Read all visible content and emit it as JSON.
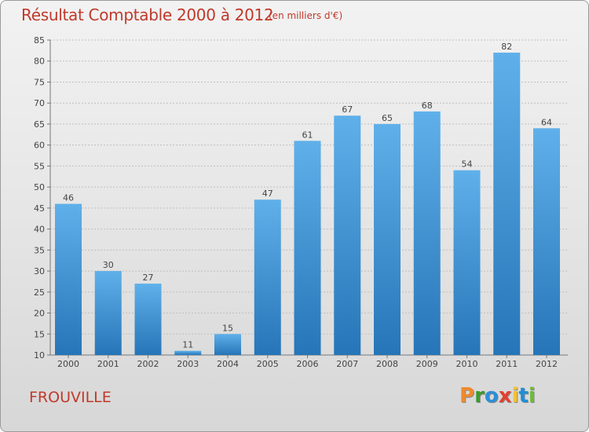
{
  "title": "Résultat Comptable 2000 à 2012",
  "subtitle": "(en milliers d'€)",
  "town": "FROUVILLE",
  "logo": {
    "letters": [
      "P",
      "r",
      "o",
      "x",
      "i",
      "t",
      "i"
    ],
    "colors": [
      "#ef8a2d",
      "#3c9a2c",
      "#2d8fd8",
      "#e2412d",
      "#f2c230",
      "#1f8fd6",
      "#6dbb3c"
    ]
  },
  "colors": {
    "accent": "#c0392b",
    "bar_top": "#5fb0ea",
    "bar_bottom": "#2675b8",
    "grid": "#bfbfbf"
  },
  "chart_data": {
    "type": "bar",
    "title": "Résultat Comptable 2000 à 2012",
    "subtitle": "(en milliers d'€)",
    "categories": [
      "2000",
      "2001",
      "2002",
      "2003",
      "2004",
      "2005",
      "2006",
      "2007",
      "2008",
      "2009",
      "2010",
      "2011",
      "2012"
    ],
    "values": [
      46,
      30,
      27,
      11,
      15,
      47,
      61,
      67,
      65,
      68,
      54,
      82,
      64
    ],
    "xlabel": "",
    "ylabel": "",
    "ylim": [
      10,
      85
    ],
    "yticks": [
      10,
      15,
      20,
      25,
      30,
      35,
      40,
      45,
      50,
      55,
      60,
      65,
      70,
      75,
      80,
      85
    ],
    "grid": true,
    "legend": "none"
  }
}
